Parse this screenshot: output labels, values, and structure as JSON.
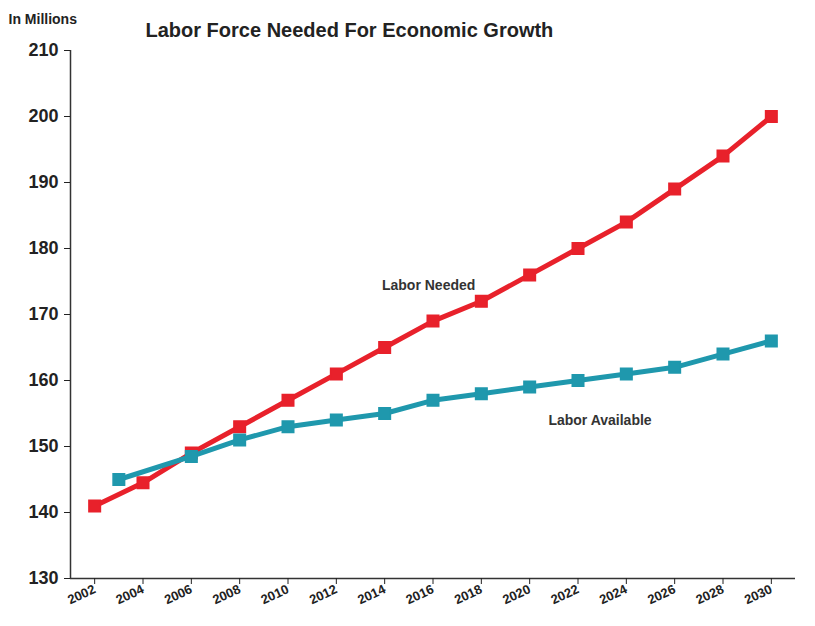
{
  "chart_data": {
    "type": "line",
    "title": "Labor Force Needed For Economic Growth",
    "y_label": "In Millions",
    "xlim": [
      2001,
      2031
    ],
    "xticks": [
      2002,
      2004,
      2006,
      2008,
      2010,
      2012,
      2014,
      2016,
      2018,
      2020,
      2022,
      2024,
      2026,
      2028,
      2030
    ],
    "ylim": [
      130,
      210
    ],
    "yticks": [
      130,
      140,
      150,
      160,
      170,
      180,
      190,
      200,
      210
    ],
    "grid": false,
    "series": [
      {
        "name": "Labor Needed",
        "color": "#e8212b",
        "marker": "square",
        "line_style": "solid",
        "x": [
          2002,
          2004,
          2006,
          2008,
          2010,
          2012,
          2014,
          2016,
          2018,
          2020,
          2022,
          2024,
          2026,
          2028,
          2030
        ],
        "values": [
          141,
          144.5,
          149,
          153,
          157,
          161,
          165,
          169,
          172,
          176,
          180,
          184,
          189,
          194,
          200
        ]
      },
      {
        "name": "Labor Available",
        "color": "#1f98ad",
        "marker": "square",
        "line_style": "solid",
        "x": [
          2003,
          2006,
          2008,
          2010,
          2012,
          2014,
          2016,
          2018,
          2020,
          2022,
          2024,
          2026,
          2028,
          2030
        ],
        "values": [
          145,
          148.5,
          151,
          153,
          154,
          155,
          157,
          158,
          159,
          160,
          161,
          162,
          164,
          166
        ]
      }
    ]
  }
}
